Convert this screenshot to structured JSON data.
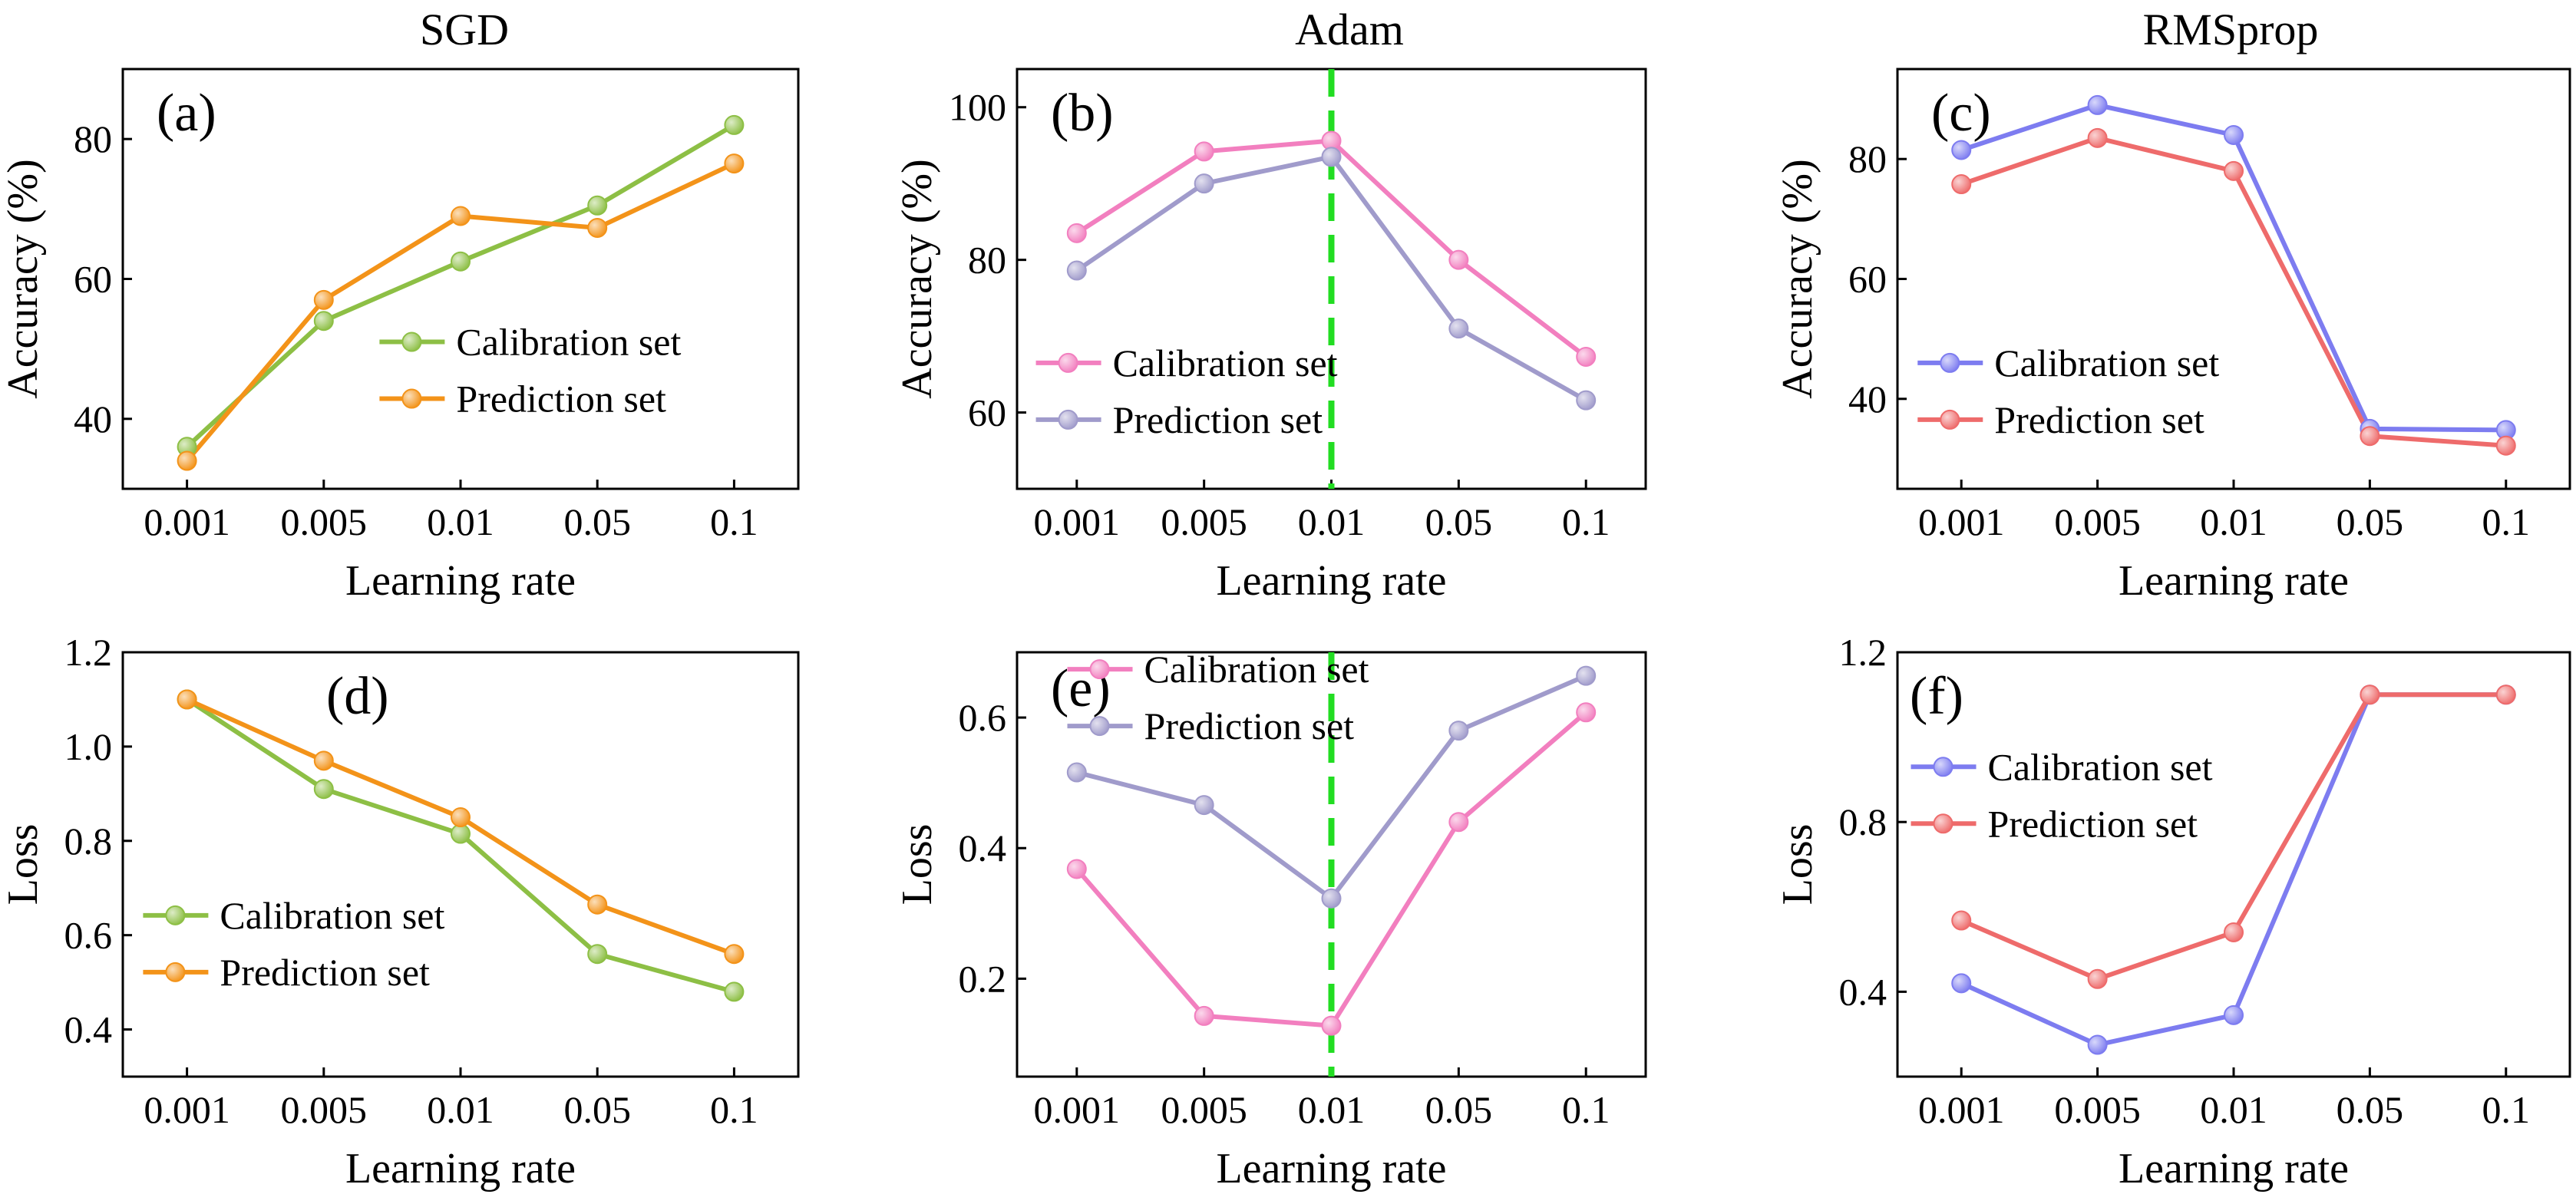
{
  "column_titles": [
    "SGD",
    "Adam",
    "RMSprop"
  ],
  "colors": {
    "sgd_calibration": "#8dbf45",
    "sgd_prediction": "#f39319",
    "adam_calibration": "#f27fbf",
    "adam_prediction": "#a09bcb",
    "rms_calibration": "#7d7cf0",
    "rms_prediction": "#ee6b6b",
    "reference_line": "#22dd22"
  },
  "chart_data": [
    {
      "type": "line",
      "id": "a",
      "panel_label": "(a)",
      "categories": [
        "0.001",
        "0.005",
        "0.01",
        "0.05",
        "0.1"
      ],
      "xlabel": "Learning rate",
      "ylabel": "Accuracy (%)",
      "ylim": [
        30,
        90
      ],
      "yticks": [
        40,
        60,
        80
      ],
      "legend": "right-lower",
      "series": [
        {
          "name": "Calibration set",
          "color_key": "sgd_calibration",
          "values": [
            36,
            54,
            62.5,
            70.5,
            82
          ]
        },
        {
          "name": "Prediction set",
          "color_key": "sgd_prediction",
          "values": [
            34,
            57,
            69,
            67.3,
            76.5
          ]
        }
      ]
    },
    {
      "type": "line",
      "id": "b",
      "panel_label": "(b)",
      "categories": [
        "0.001",
        "0.005",
        "0.01",
        "0.05",
        "0.1"
      ],
      "xlabel": "Learning rate",
      "ylabel": "Accuracy (%)",
      "ylim": [
        50,
        105
      ],
      "yticks": [
        60,
        80,
        100
      ],
      "legend": "left-lower",
      "reference_line_at": "0.01",
      "series": [
        {
          "name": "Calibration set",
          "color_key": "adam_calibration",
          "values": [
            83.5,
            94.2,
            95.6,
            80,
            67.3
          ]
        },
        {
          "name": "Prediction set",
          "color_key": "adam_prediction",
          "values": [
            78.6,
            90,
            93.5,
            71,
            61.6
          ]
        }
      ]
    },
    {
      "type": "line",
      "id": "c",
      "panel_label": "(c)",
      "categories": [
        "0.001",
        "0.005",
        "0.01",
        "0.05",
        "0.1"
      ],
      "xlabel": "Learning rate",
      "ylabel": "Accuracy (%)",
      "ylim": [
        25,
        95
      ],
      "yticks": [
        40,
        60,
        80
      ],
      "legend": "left-lower",
      "series": [
        {
          "name": "Calibration set",
          "color_key": "rms_calibration",
          "values": [
            81.5,
            89,
            84,
            35,
            34.8
          ]
        },
        {
          "name": "Prediction set",
          "color_key": "rms_prediction",
          "values": [
            75.8,
            83.5,
            78,
            33.8,
            32.2
          ]
        }
      ]
    },
    {
      "type": "line",
      "id": "d",
      "panel_label": "(d)",
      "categories": [
        "0.001",
        "0.005",
        "0.01",
        "0.05",
        "0.1"
      ],
      "xlabel": "Learning rate",
      "ylabel": "Loss",
      "ylim": [
        0.3,
        1.2
      ],
      "yticks": [
        0.4,
        0.6,
        0.8,
        1.0,
        1.2
      ],
      "legend": "left-lower",
      "series": [
        {
          "name": "Calibration set",
          "color_key": "sgd_calibration",
          "values": [
            1.1,
            0.91,
            0.815,
            0.56,
            0.48
          ]
        },
        {
          "name": "Prediction set",
          "color_key": "sgd_prediction",
          "values": [
            1.1,
            0.97,
            0.85,
            0.665,
            0.56
          ]
        }
      ]
    },
    {
      "type": "line",
      "id": "e",
      "panel_label": "(e)",
      "categories": [
        "0.001",
        "0.005",
        "0.01",
        "0.05",
        "0.1"
      ],
      "xlabel": "Learning rate",
      "ylabel": "Loss",
      "ylim": [
        0.05,
        0.7
      ],
      "yticks": [
        0.2,
        0.4,
        0.6
      ],
      "legend": "top-center",
      "reference_line_at": "0.01",
      "series": [
        {
          "name": "Calibration set",
          "color_key": "adam_calibration",
          "values": [
            0.368,
            0.143,
            0.128,
            0.44,
            0.608
          ]
        },
        {
          "name": "Prediction set",
          "color_key": "adam_prediction",
          "values": [
            0.516,
            0.466,
            0.323,
            0.58,
            0.664
          ]
        }
      ]
    },
    {
      "type": "line",
      "id": "f",
      "panel_label": "(f)",
      "categories": [
        "0.001",
        "0.005",
        "0.01",
        "0.05",
        "0.1"
      ],
      "xlabel": "Learning rate",
      "ylabel": "Loss",
      "ylim": [
        0.2,
        1.2
      ],
      "yticks": [
        0.4,
        0.8,
        1.2
      ],
      "legend": "left-middle",
      "series": [
        {
          "name": "Calibration set",
          "color_key": "rms_calibration",
          "values": [
            0.42,
            0.275,
            0.345,
            1.1,
            1.1
          ]
        },
        {
          "name": "Prediction set",
          "color_key": "rms_prediction",
          "values": [
            0.568,
            0.43,
            0.54,
            1.1,
            1.1
          ]
        }
      ]
    }
  ]
}
